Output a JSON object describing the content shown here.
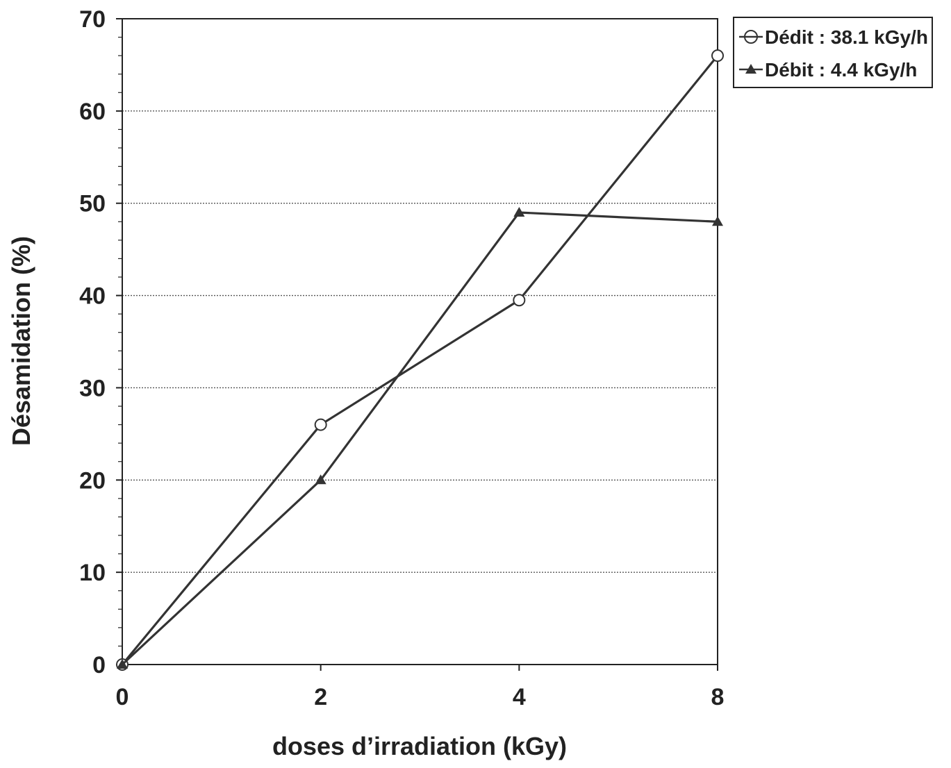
{
  "chart_data": {
    "type": "line",
    "title": "",
    "xlabel": "doses d’irradiation (kGy)",
    "ylabel": "Désamidation (%)",
    "categories": [
      "0",
      "2",
      "4",
      "8"
    ],
    "ylim": [
      0,
      70
    ],
    "yticks": [
      0,
      10,
      20,
      30,
      40,
      50,
      60,
      70
    ],
    "grid": {
      "horizontal": true,
      "style": "dotted"
    },
    "legend_position": "top-right",
    "series": [
      {
        "name": "Dédit : 38.1 kGy/h",
        "marker": "circle-open",
        "values": [
          0,
          26,
          39.5,
          66
        ]
      },
      {
        "name": "Débit : 4.4 kGy/h",
        "marker": "triangle-filled",
        "values": [
          0,
          20,
          49,
          48
        ]
      }
    ]
  },
  "colors": {
    "line": "#333333",
    "axis": "#222222",
    "grid": "#555555",
    "text": "#222222"
  }
}
